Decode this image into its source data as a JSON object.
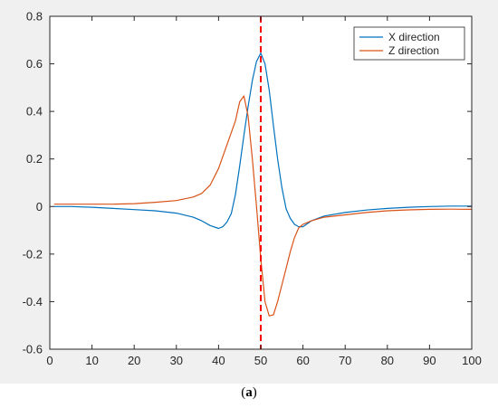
{
  "chart_data": {
    "type": "line",
    "title": "",
    "xlabel": "",
    "ylabel": "",
    "xlim": [
      0,
      100
    ],
    "ylim": [
      -0.6,
      0.8
    ],
    "xticks": [
      0,
      10,
      20,
      30,
      40,
      50,
      60,
      70,
      80,
      90,
      100
    ],
    "yticks": [
      -0.6,
      -0.4,
      -0.2,
      0,
      0.2,
      0.4,
      0.6,
      0.8
    ],
    "xtick_labels": [
      "0",
      "10",
      "20",
      "30",
      "40",
      "50",
      "60",
      "70",
      "80",
      "90",
      "100"
    ],
    "ytick_labels": [
      "-0.6",
      "-0.4",
      "-0.2",
      "0",
      "0.2",
      "0.4",
      "0.6",
      "0.8"
    ],
    "grid": false,
    "legend_position": "top-right",
    "series": [
      {
        "name": "X direction",
        "color": "#0072bd",
        "x": [
          1,
          5,
          10,
          15,
          20,
          25,
          30,
          34,
          36,
          38,
          40,
          41,
          42,
          43,
          44,
          45,
          46,
          47,
          48,
          49,
          50,
          51,
          52,
          53,
          54,
          55,
          56,
          57,
          58,
          59,
          60,
          62,
          65,
          70,
          75,
          80,
          85,
          90,
          95,
          100
        ],
        "y": [
          0.0,
          0.0,
          -0.003,
          -0.008,
          -0.013,
          -0.018,
          -0.028,
          -0.045,
          -0.06,
          -0.08,
          -0.092,
          -0.085,
          -0.065,
          -0.03,
          0.05,
          0.17,
          0.3,
          0.42,
          0.53,
          0.61,
          0.645,
          0.6,
          0.49,
          0.34,
          0.2,
          0.08,
          -0.01,
          -0.05,
          -0.075,
          -0.085,
          -0.085,
          -0.06,
          -0.04,
          -0.025,
          -0.015,
          -0.008,
          -0.003,
          0.0,
          0.002,
          0.002
        ]
      },
      {
        "name": "Z direction",
        "color": "#d95319",
        "x": [
          1,
          5,
          10,
          15,
          20,
          25,
          30,
          34,
          36,
          38,
          40,
          42,
          44,
          45,
          46,
          47,
          48,
          49,
          50,
          51,
          52,
          53,
          54,
          55,
          56,
          57,
          58,
          59,
          60,
          62,
          65,
          70,
          75,
          80,
          85,
          90,
          95,
          100
        ],
        "y": [
          0.01,
          0.01,
          0.01,
          0.01,
          0.012,
          0.018,
          0.025,
          0.04,
          0.055,
          0.09,
          0.16,
          0.26,
          0.36,
          0.44,
          0.465,
          0.38,
          0.2,
          0.0,
          -0.22,
          -0.4,
          -0.46,
          -0.455,
          -0.4,
          -0.33,
          -0.26,
          -0.19,
          -0.13,
          -0.09,
          -0.075,
          -0.06,
          -0.045,
          -0.035,
          -0.025,
          -0.018,
          -0.014,
          -0.012,
          -0.011,
          -0.012
        ]
      }
    ],
    "reference_line": {
      "x": 50,
      "color": "#ff0000",
      "style": "dashed"
    }
  },
  "caption": {
    "open": "(",
    "label": "a",
    "close": ")"
  }
}
